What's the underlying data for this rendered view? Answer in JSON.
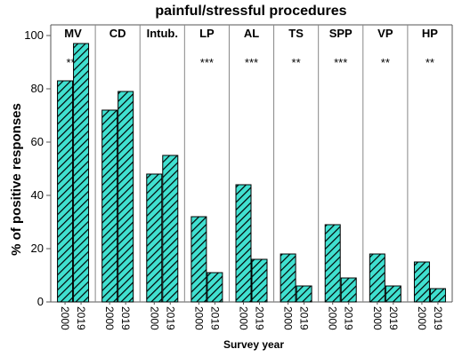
{
  "chart_data": {
    "type": "bar",
    "title": "painful/stressful procedures",
    "xlabel": "Survey year",
    "ylabel": "% of positive responses",
    "ylim": [
      0,
      100
    ],
    "yticks": [
      "0",
      "20",
      "40",
      "60",
      "80",
      "100"
    ],
    "categories": [
      "2000",
      "2019"
    ],
    "bar_fill": "#40e0d0",
    "bar_pattern": "diagonal-hatch",
    "grid": false,
    "panels": [
      {
        "label": "MV",
        "values": [
          83,
          97
        ],
        "significance": "***"
      },
      {
        "label": "CD",
        "values": [
          72,
          79
        ],
        "significance": ""
      },
      {
        "label": "Intub.",
        "values": [
          48,
          55
        ],
        "significance": ""
      },
      {
        "label": "LP",
        "values": [
          32,
          11
        ],
        "significance": "***"
      },
      {
        "label": "AL",
        "values": [
          44,
          16
        ],
        "significance": "***"
      },
      {
        "label": "TS",
        "values": [
          18,
          6
        ],
        "significance": "**"
      },
      {
        "label": "SPP",
        "values": [
          29,
          9
        ],
        "significance": "***"
      },
      {
        "label": "VP",
        "values": [
          18,
          6
        ],
        "significance": "**"
      },
      {
        "label": "HP",
        "values": [
          15,
          5
        ],
        "significance": "**"
      }
    ]
  }
}
